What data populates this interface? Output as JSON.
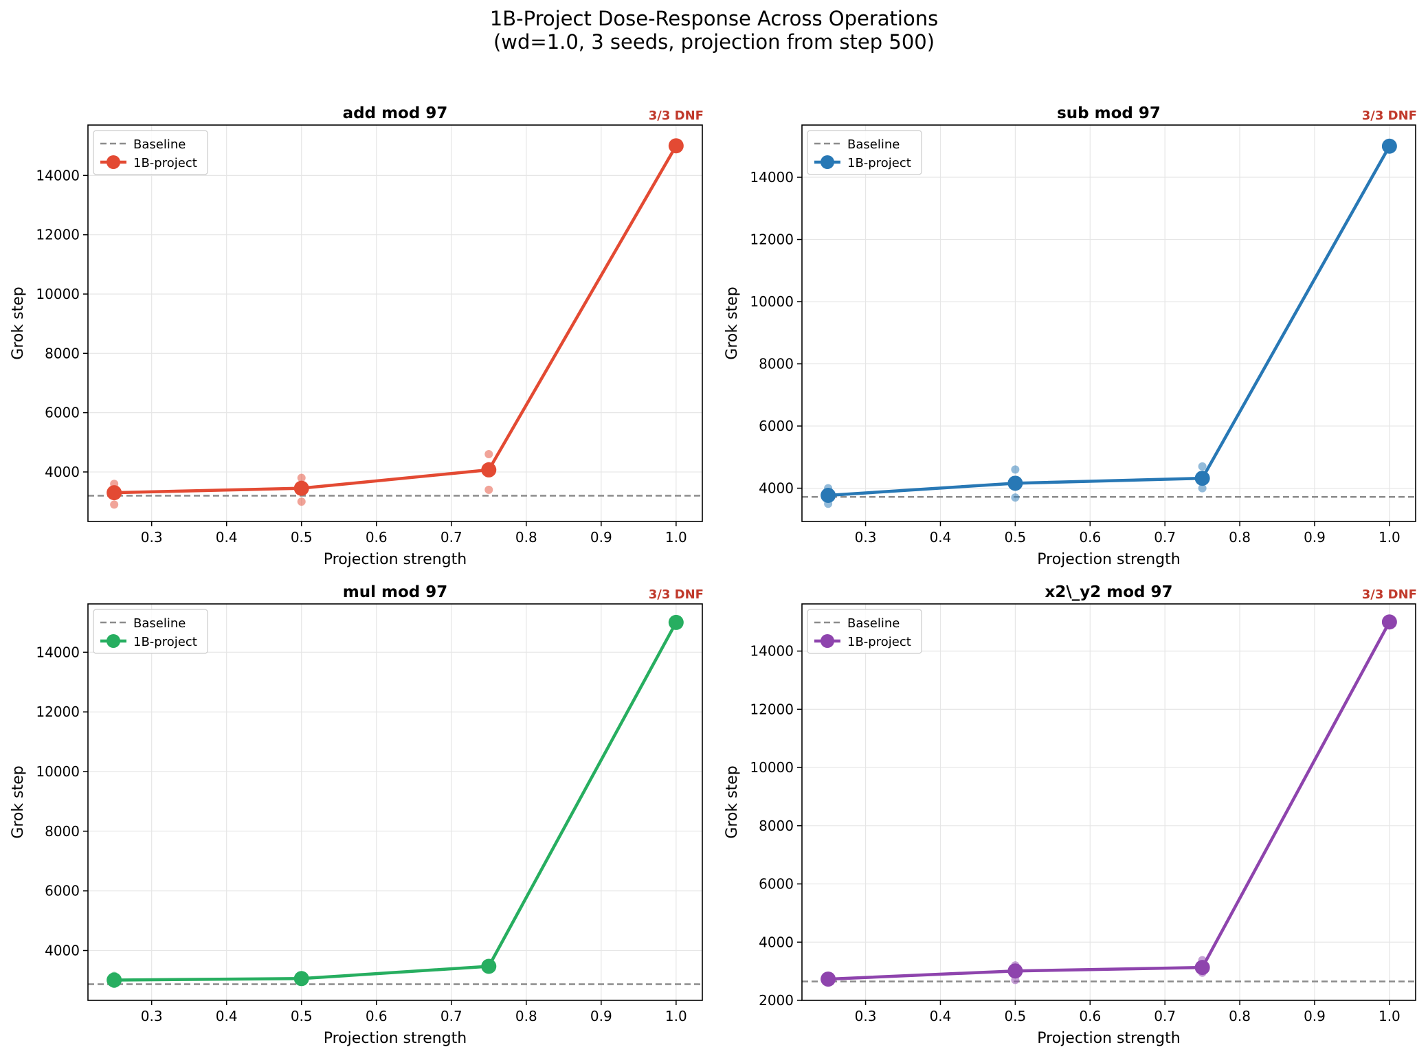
{
  "figure": {
    "title_line1": "1B-Project Dose-Response Across Operations",
    "title_line2": "(wd=1.0, 3 seeds, projection from step 500)"
  },
  "chart_data": [
    {
      "type": "line",
      "title": "add mod 97",
      "xlabel": "Projection strength",
      "ylabel": "Grok step",
      "color": "#e34a33",
      "xlim": [
        0.215,
        1.035
      ],
      "ylim": [
        2330,
        15700
      ],
      "xticks": [
        0.3,
        0.4,
        0.5,
        0.6,
        0.7,
        0.8,
        0.9,
        1.0
      ],
      "xtick_labels": [
        "0.3",
        "0.4",
        "0.5",
        "0.6",
        "0.7",
        "0.8",
        "0.9",
        "1.0"
      ],
      "yticks": [
        4000,
        6000,
        8000,
        10000,
        12000,
        14000
      ],
      "ytick_labels": [
        "4000",
        "6000",
        "8000",
        "10000",
        "12000",
        "14000"
      ],
      "baseline": 3200,
      "legend": [
        "Baseline",
        "1B-project"
      ],
      "series": [
        {
          "name": "1B-project",
          "x": [
            0.25,
            0.5,
            0.75,
            1.0
          ],
          "y": [
            3300,
            3450,
            4070,
            15000
          ]
        }
      ],
      "seeds": [
        {
          "x": 0.25,
          "y": 3600
        },
        {
          "x": 0.25,
          "y": 3400
        },
        {
          "x": 0.25,
          "y": 2900
        },
        {
          "x": 0.5,
          "y": 3800
        },
        {
          "x": 0.5,
          "y": 3550
        },
        {
          "x": 0.5,
          "y": 3000
        },
        {
          "x": 0.75,
          "y": 4600
        },
        {
          "x": 0.75,
          "y": 4200
        },
        {
          "x": 0.75,
          "y": 3400
        },
        {
          "x": 1.0,
          "y": 15000
        },
        {
          "x": 1.0,
          "y": 15000
        },
        {
          "x": 1.0,
          "y": 15000
        }
      ],
      "annotation": "3/3 DNF"
    },
    {
      "type": "line",
      "title": "sub mod 97",
      "xlabel": "Projection strength",
      "ylabel": "Grok step",
      "color": "#2878b5",
      "xlim": [
        0.215,
        1.035
      ],
      "ylim": [
        2930,
        15680
      ],
      "xticks": [
        0.3,
        0.4,
        0.5,
        0.6,
        0.7,
        0.8,
        0.9,
        1.0
      ],
      "xtick_labels": [
        "0.3",
        "0.4",
        "0.5",
        "0.6",
        "0.7",
        "0.8",
        "0.9",
        "1.0"
      ],
      "yticks": [
        4000,
        6000,
        8000,
        10000,
        12000,
        14000
      ],
      "ytick_labels": [
        "4000",
        "6000",
        "8000",
        "10000",
        "12000",
        "14000"
      ],
      "baseline": 3720,
      "legend": [
        "Baseline",
        "1B-project"
      ],
      "series": [
        {
          "name": "1B-project",
          "x": [
            0.25,
            0.5,
            0.75,
            1.0
          ],
          "y": [
            3770,
            4160,
            4320,
            15000
          ]
        }
      ],
      "seeds": [
        {
          "x": 0.25,
          "y": 4000
        },
        {
          "x": 0.25,
          "y": 3800
        },
        {
          "x": 0.25,
          "y": 3500
        },
        {
          "x": 0.5,
          "y": 4600
        },
        {
          "x": 0.5,
          "y": 4200
        },
        {
          "x": 0.5,
          "y": 3700
        },
        {
          "x": 0.75,
          "y": 4700
        },
        {
          "x": 0.75,
          "y": 4300
        },
        {
          "x": 0.75,
          "y": 4000
        },
        {
          "x": 1.0,
          "y": 15000
        },
        {
          "x": 1.0,
          "y": 15000
        },
        {
          "x": 1.0,
          "y": 15000
        }
      ],
      "annotation": "3/3 DNF"
    },
    {
      "type": "line",
      "title": "mul mod 97",
      "xlabel": "Projection strength",
      "ylabel": "Grok step",
      "color": "#27ae60",
      "xlim": [
        0.215,
        1.035
      ],
      "ylim": [
        2330,
        15620
      ],
      "xticks": [
        0.3,
        0.4,
        0.5,
        0.6,
        0.7,
        0.8,
        0.9,
        1.0
      ],
      "xtick_labels": [
        "0.3",
        "0.4",
        "0.5",
        "0.6",
        "0.7",
        "0.8",
        "0.9",
        "1.0"
      ],
      "yticks": [
        4000,
        6000,
        8000,
        10000,
        12000,
        14000
      ],
      "ytick_labels": [
        "4000",
        "6000",
        "8000",
        "10000",
        "12000",
        "14000"
      ],
      "baseline": 2870,
      "legend": [
        "Baseline",
        "1B-project"
      ],
      "series": [
        {
          "name": "1B-project",
          "x": [
            0.25,
            0.5,
            0.75,
            1.0
          ],
          "y": [
            3010,
            3060,
            3470,
            15000
          ]
        }
      ],
      "seeds": [
        {
          "x": 0.25,
          "y": 3150
        },
        {
          "x": 0.25,
          "y": 3000
        },
        {
          "x": 0.25,
          "y": 2880
        },
        {
          "x": 0.5,
          "y": 3120
        },
        {
          "x": 0.5,
          "y": 3060
        },
        {
          "x": 0.5,
          "y": 3000
        },
        {
          "x": 0.75,
          "y": 3550
        },
        {
          "x": 0.75,
          "y": 3470
        },
        {
          "x": 0.75,
          "y": 3390
        },
        {
          "x": 1.0,
          "y": 15000
        },
        {
          "x": 1.0,
          "y": 15000
        },
        {
          "x": 1.0,
          "y": 15000
        }
      ],
      "annotation": "3/3 DNF"
    },
    {
      "type": "line",
      "title": "x2\\_y2 mod 97",
      "xlabel": "Projection strength",
      "ylabel": "Grok step",
      "color": "#8e44ad",
      "xlim": [
        0.215,
        1.035
      ],
      "ylim": [
        2000,
        15620
      ],
      "xticks": [
        0.3,
        0.4,
        0.5,
        0.6,
        0.7,
        0.8,
        0.9,
        1.0
      ],
      "xtick_labels": [
        "0.3",
        "0.4",
        "0.5",
        "0.6",
        "0.7",
        "0.8",
        "0.9",
        "1.0"
      ],
      "yticks": [
        2000,
        4000,
        6000,
        8000,
        10000,
        12000,
        14000
      ],
      "ytick_labels": [
        "2000",
        "4000",
        "6000",
        "8000",
        "10000",
        "12000",
        "14000"
      ],
      "baseline": 2650,
      "legend": [
        "Baseline",
        "1B-project"
      ],
      "series": [
        {
          "name": "1B-project",
          "x": [
            0.25,
            0.5,
            0.75,
            1.0
          ],
          "y": [
            2730,
            3010,
            3130,
            15000
          ]
        }
      ],
      "seeds": [
        {
          "x": 0.25,
          "y": 2800
        },
        {
          "x": 0.25,
          "y": 2730
        },
        {
          "x": 0.25,
          "y": 2660
        },
        {
          "x": 0.5,
          "y": 3200
        },
        {
          "x": 0.5,
          "y": 3000
        },
        {
          "x": 0.5,
          "y": 2700
        },
        {
          "x": 0.75,
          "y": 3380
        },
        {
          "x": 0.75,
          "y": 3100
        },
        {
          "x": 0.75,
          "y": 2950
        },
        {
          "x": 1.0,
          "y": 15000
        },
        {
          "x": 1.0,
          "y": 15000
        },
        {
          "x": 1.0,
          "y": 15000
        }
      ],
      "annotation": "3/3 DNF"
    }
  ]
}
